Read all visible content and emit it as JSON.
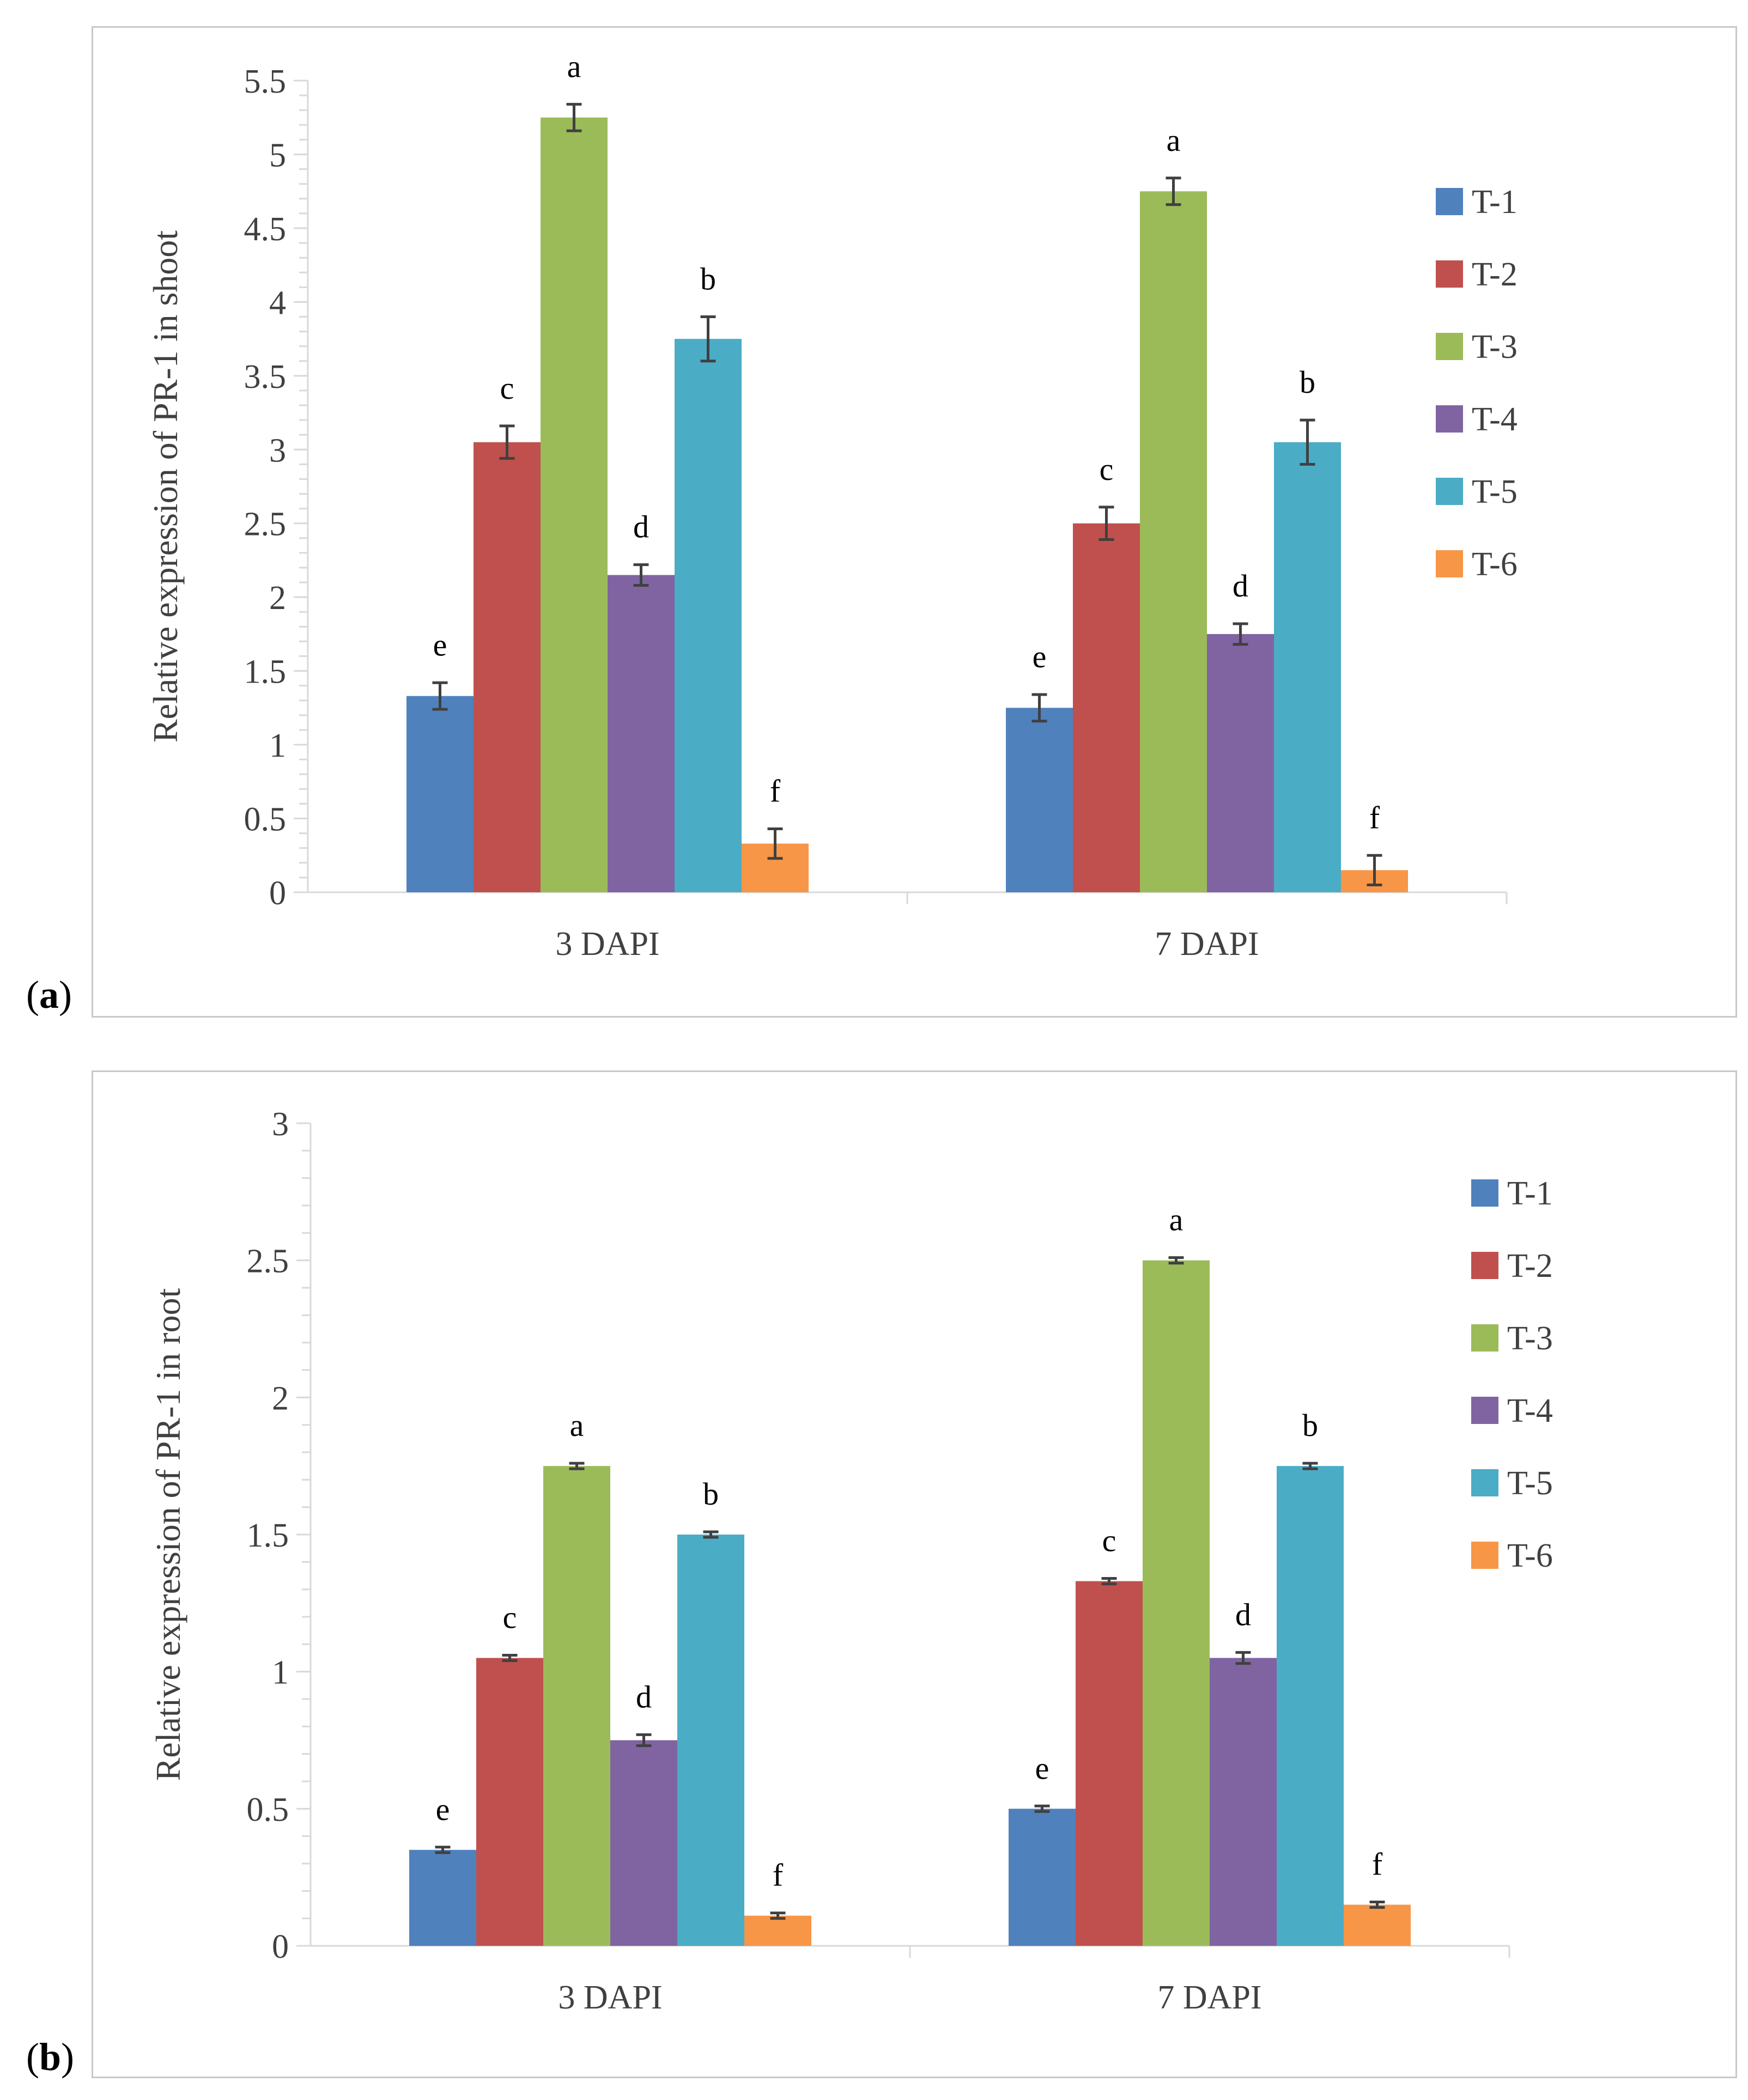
{
  "chart_data": [
    {
      "type": "bar",
      "panel_label": "a",
      "ylabel": "Relative expression of PR-1 in shoot",
      "xlabel": "",
      "categories": [
        "3 DAPI",
        "7 DAPI"
      ],
      "ylim": [
        0,
        5.5
      ],
      "yticks": [
        0,
        0.5,
        1,
        1.5,
        2,
        2.5,
        3,
        3.5,
        4,
        4.5,
        5,
        5.5
      ],
      "ytick_labels": [
        "0",
        "0.5",
        "1",
        "1.5",
        "2",
        "2.5",
        "3",
        "3.5",
        "4",
        "4.5",
        "5",
        "5.5"
      ],
      "legend": "right",
      "series": [
        {
          "name": "T-1",
          "color": "#4f81bd",
          "values": [
            1.33,
            1.25
          ],
          "errors": [
            0.09,
            0.09
          ],
          "letters": [
            "e",
            "e"
          ]
        },
        {
          "name": "T-2",
          "color": "#c0504d",
          "values": [
            3.05,
            2.5
          ],
          "errors": [
            0.11,
            0.11
          ],
          "letters": [
            "c",
            "c"
          ]
        },
        {
          "name": "T-3",
          "color": "#9bbb59",
          "values": [
            5.25,
            4.75
          ],
          "errors": [
            0.09,
            0.09
          ],
          "letters": [
            "a",
            "a"
          ]
        },
        {
          "name": "T-4",
          "color": "#8064a2",
          "values": [
            2.15,
            1.75
          ],
          "errors": [
            0.07,
            0.07
          ],
          "letters": [
            "d",
            "d"
          ]
        },
        {
          "name": "T-5",
          "color": "#4bacc6",
          "values": [
            3.75,
            3.05
          ],
          "errors": [
            0.15,
            0.15
          ],
          "letters": [
            "b",
            "b"
          ]
        },
        {
          "name": "T-6",
          "color": "#f79646",
          "values": [
            0.33,
            0.15
          ],
          "errors": [
            0.1,
            0.1
          ],
          "letters": [
            "f",
            "f"
          ]
        }
      ]
    },
    {
      "type": "bar",
      "panel_label": "b",
      "ylabel": "Relative expression of PR-1 in root",
      "xlabel": "",
      "categories": [
        "3 DAPI",
        "7 DAPI"
      ],
      "ylim": [
        0,
        3
      ],
      "yticks": [
        0,
        0.5,
        1,
        1.5,
        2,
        2.5,
        3
      ],
      "ytick_labels": [
        "0",
        "0.5",
        "1",
        "1.5",
        "2",
        "2.5",
        "3"
      ],
      "legend": "right",
      "series": [
        {
          "name": "T-1",
          "color": "#4f81bd",
          "values": [
            0.35,
            0.5
          ],
          "errors": [
            0.01,
            0.01
          ],
          "letters": [
            "e",
            "e"
          ]
        },
        {
          "name": "T-2",
          "color": "#c0504d",
          "values": [
            1.05,
            1.33
          ],
          "errors": [
            0.01,
            0.01
          ],
          "letters": [
            "c",
            "c"
          ]
        },
        {
          "name": "T-3",
          "color": "#9bbb59",
          "values": [
            1.75,
            2.5
          ],
          "errors": [
            0.01,
            0.01
          ],
          "letters": [
            "a",
            "a"
          ]
        },
        {
          "name": "T-4",
          "color": "#8064a2",
          "values": [
            0.75,
            1.05
          ],
          "errors": [
            0.02,
            0.02
          ],
          "letters": [
            "d",
            "d"
          ]
        },
        {
          "name": "T-5",
          "color": "#4bacc6",
          "values": [
            1.5,
            1.75
          ],
          "errors": [
            0.01,
            0.01
          ],
          "letters": [
            "b",
            "b"
          ]
        },
        {
          "name": "T-6",
          "color": "#f79646",
          "values": [
            0.11,
            0.15
          ],
          "errors": [
            0.01,
            0.01
          ],
          "letters": [
            "f",
            "f"
          ]
        }
      ]
    }
  ]
}
